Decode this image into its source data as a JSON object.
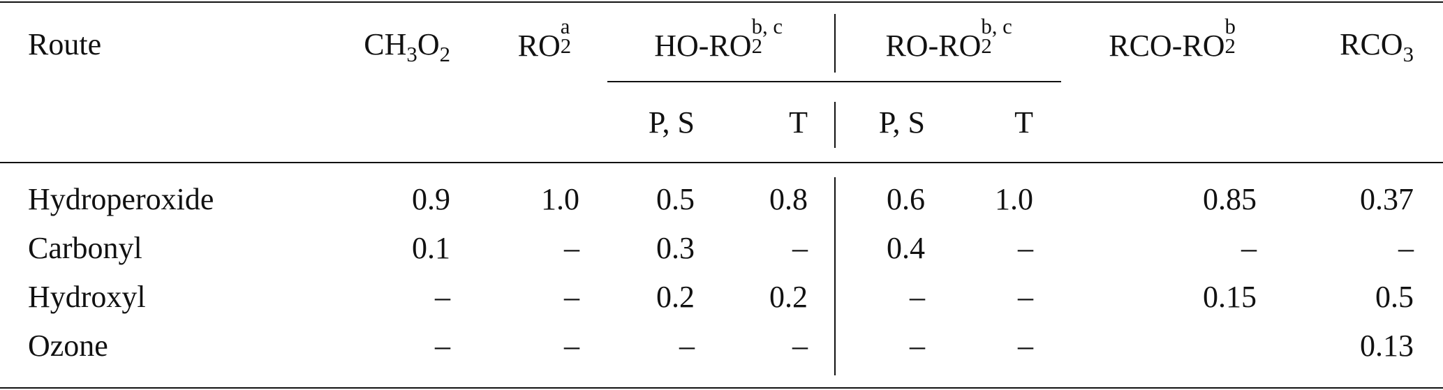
{
  "table": {
    "headers": {
      "route": "Route",
      "ch3o2": {
        "base": "CH",
        "sub1": "3",
        "mid": "O",
        "sub2": "2"
      },
      "ro2": {
        "base": "RO",
        "sup": "a",
        "sub": "2"
      },
      "ho_ro2": {
        "base": "HO-RO",
        "sup": "b, c",
        "sub": "2"
      },
      "ro_ro2": {
        "base": "RO-RO",
        "sup": "b, c",
        "sub": "2"
      },
      "rco_ro2": {
        "base": "RCO-RO",
        "sup": "b",
        "sub": "2"
      },
      "rco3": {
        "base": "RCO",
        "sub": "3"
      },
      "ho_ps": "P, S",
      "ho_t": "T",
      "ro_ps": "P, S",
      "ro_t": "T"
    },
    "rows": [
      {
        "route": "Hydroperoxide",
        "ch3o2": "0.9",
        "ro2": "1.0",
        "ho_ps": "0.5",
        "ho_t": "0.8",
        "ro_ps": "0.6",
        "ro_t": "1.0",
        "rco_ro2": "0.85",
        "rco3": "0.37"
      },
      {
        "route": "Carbonyl",
        "ch3o2": "0.1",
        "ro2": "–",
        "ho_ps": "0.3",
        "ho_t": "–",
        "ro_ps": "0.4",
        "ro_t": "–",
        "rco_ro2": "–",
        "rco3": "–"
      },
      {
        "route": "Hydroxyl",
        "ch3o2": "–",
        "ro2": "–",
        "ho_ps": "0.2",
        "ho_t": "0.2",
        "ro_ps": "–",
        "ro_t": "–",
        "rco_ro2": "0.15",
        "rco3": "0.5"
      },
      {
        "route": "Ozone",
        "ch3o2": "–",
        "ro2": "–",
        "ho_ps": "–",
        "ho_t": "–",
        "ro_ps": "–",
        "ro_t": "–",
        "rco_ro2": "",
        "rco3": "0.13"
      }
    ]
  }
}
